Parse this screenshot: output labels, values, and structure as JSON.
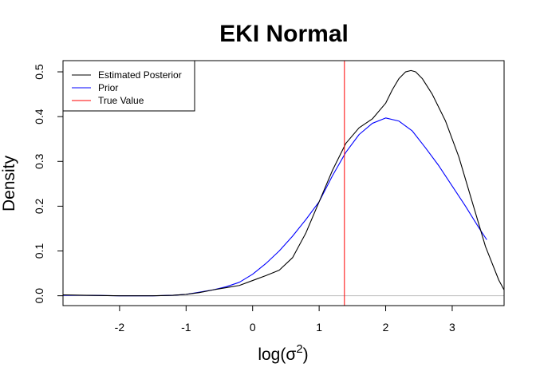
{
  "chart_data": {
    "type": "line",
    "title": "EKI Normal",
    "xlabel": "log(σ2)",
    "ylabel": "Density",
    "xlim": [
      -2.85,
      3.78
    ],
    "ylim": [
      -0.022,
      0.525
    ],
    "x_ticks": [
      "-2",
      "-1",
      "0",
      "1",
      "2",
      "3"
    ],
    "x_tick_values": [
      -2,
      -1,
      0,
      1,
      2,
      3
    ],
    "y_ticks": [
      "0.0",
      "0.1",
      "0.2",
      "0.3",
      "0.4",
      "0.5"
    ],
    "y_tick_values": [
      0,
      0.1,
      0.2,
      0.3,
      0.4,
      0.5
    ],
    "grid": false,
    "legend_position": "top-left",
    "baseline": {
      "y": 0,
      "color": "#bebebe"
    },
    "vline": {
      "x": 1.38,
      "name": "True Value",
      "color": "#ff0000"
    },
    "series": [
      {
        "name": "Estimated Posterior",
        "color": "#000000",
        "x": [
          -2.85,
          -2.5,
          -2.0,
          -1.5,
          -1.2,
          -1.0,
          -0.8,
          -0.6,
          -0.4,
          -0.2,
          0.0,
          0.2,
          0.4,
          0.6,
          0.8,
          1.0,
          1.2,
          1.4,
          1.6,
          1.8,
          2.0,
          2.1,
          2.2,
          2.3,
          2.38,
          2.45,
          2.55,
          2.7,
          2.9,
          3.1,
          3.3,
          3.5,
          3.7,
          3.78
        ],
        "values": [
          0.002,
          0.001,
          0.0,
          0.0,
          0.001,
          0.003,
          0.007,
          0.013,
          0.018,
          0.023,
          0.034,
          0.045,
          0.057,
          0.085,
          0.14,
          0.21,
          0.28,
          0.34,
          0.375,
          0.395,
          0.43,
          0.46,
          0.485,
          0.5,
          0.503,
          0.5,
          0.485,
          0.45,
          0.39,
          0.31,
          0.21,
          0.11,
          0.035,
          0.013
        ]
      },
      {
        "name": "Prior",
        "color": "#0000ff",
        "x": [
          -2.85,
          -2.5,
          -2.0,
          -1.5,
          -1.2,
          -1.0,
          -0.8,
          -0.6,
          -0.4,
          -0.2,
          0.0,
          0.2,
          0.4,
          0.6,
          0.8,
          1.0,
          1.2,
          1.4,
          1.6,
          1.8,
          2.0,
          2.2,
          2.4,
          2.6,
          2.8,
          3.0,
          3.2,
          3.4,
          3.52
        ],
        "values": [
          0.001,
          0.001,
          0.0,
          0.0,
          0.001,
          0.003,
          0.008,
          0.013,
          0.02,
          0.03,
          0.048,
          0.072,
          0.1,
          0.133,
          0.17,
          0.21,
          0.268,
          0.32,
          0.36,
          0.385,
          0.397,
          0.39,
          0.368,
          0.33,
          0.29,
          0.245,
          0.2,
          0.152,
          0.125
        ]
      }
    ]
  }
}
